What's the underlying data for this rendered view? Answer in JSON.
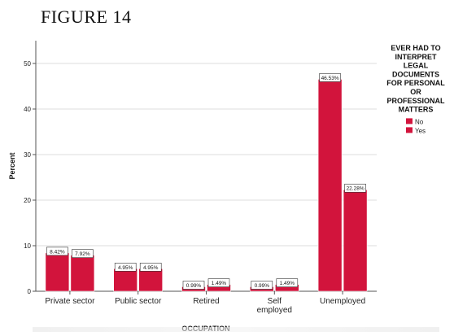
{
  "figure_label": "FIGURE 14",
  "chart_data": {
    "type": "bar",
    "categories": [
      "Private sector",
      "Public sector",
      "Retired",
      "Self employed",
      "Unemployed"
    ],
    "category_lines": [
      [
        "Private sector"
      ],
      [
        "Public sector"
      ],
      [
        "Retired"
      ],
      [
        "Self",
        "employed"
      ],
      [
        "Unemployed"
      ]
    ],
    "series": [
      {
        "name": "No",
        "values": [
          8.42,
          4.95,
          0.99,
          0.99,
          46.53
        ],
        "labels": [
          "8.42%",
          "4.95%",
          "0.99%",
          "0.99%",
          "46.53%"
        ]
      },
      {
        "name": "Yes",
        "values": [
          7.92,
          4.95,
          1.49,
          1.49,
          22.28
        ],
        "labels": [
          "7.92%",
          "4.95%",
          "1.49%",
          "1.49%",
          "22.28%"
        ]
      }
    ],
    "xlabel": "OCCUPATION",
    "ylabel": "Percent",
    "ylim": [
      0,
      55
    ],
    "yticks": [
      0,
      10,
      20,
      30,
      40,
      50
    ],
    "grid": true,
    "legend_title_lines": [
      "EVER HAD TO",
      "INTERPRET",
      "LEGAL",
      "DOCUMENTS",
      "FOR PERSONAL",
      "OR",
      "PROFESSIONAL",
      "MATTERS"
    ],
    "legend_position": "right",
    "colors": {
      "No": "#d2143c",
      "Yes": "#d2143c"
    }
  }
}
